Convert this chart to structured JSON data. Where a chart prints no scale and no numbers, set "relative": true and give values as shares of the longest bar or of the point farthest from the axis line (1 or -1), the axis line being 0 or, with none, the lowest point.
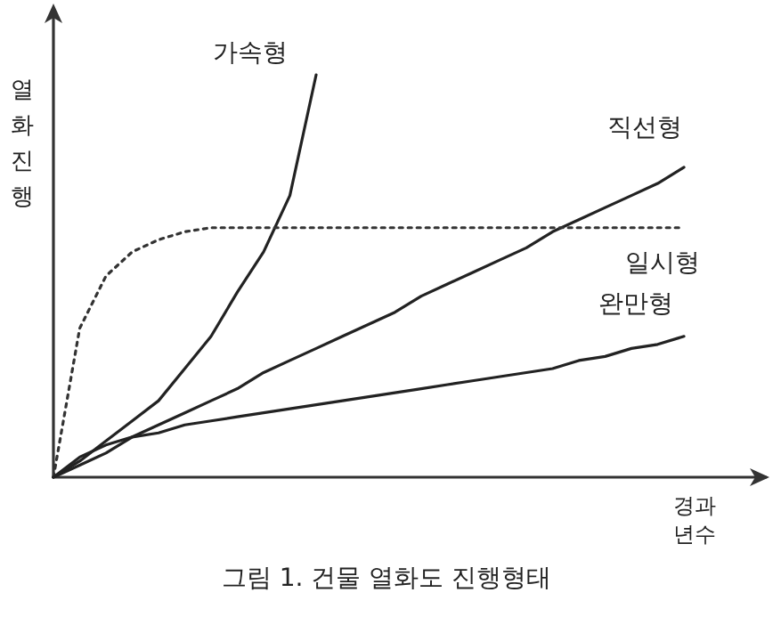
{
  "chart_data": {
    "type": "line",
    "relative": true,
    "ylabel": "열화진행",
    "xlabel": "경과 년수",
    "annotations": [
      "그림 1. 건물 열화도 진행형태"
    ],
    "categories": [
      null,
      null,
      null,
      null,
      null,
      null,
      null,
      null,
      null,
      null,
      null,
      null,
      null,
      null,
      null,
      null,
      null,
      null,
      null,
      null,
      null,
      null,
      null,
      null,
      null
    ],
    "series": [
      {
        "name": "가속형",
        "color": "#222222",
        "line_style": "solid",
        "values": [
          0,
          0.04,
          0.09,
          0.14,
          0.19,
          0.27,
          0.35,
          0.46,
          0.56,
          0.7,
          1,
          null,
          null,
          null,
          null,
          null,
          null,
          null,
          null,
          null,
          null,
          null,
          null,
          null,
          null
        ]
      },
      {
        "name": "직선형",
        "color": "#222222",
        "line_style": "solid",
        "values": [
          0,
          0.03,
          0.06,
          0.1,
          0.13,
          0.16,
          0.19,
          0.22,
          0.26,
          0.29,
          0.32,
          0.35,
          0.38,
          0.41,
          0.45,
          0.48,
          0.51,
          0.54,
          0.57,
          0.61,
          0.64,
          0.67,
          0.7,
          0.73,
          0.77
        ]
      },
      {
        "name": "일시형",
        "color": "#333333",
        "line_style": "dotted",
        "values": [
          0,
          0.37,
          0.5,
          0.56,
          0.59,
          0.61,
          0.62,
          0.62,
          0.62,
          0.62,
          0.62,
          0.62,
          0.62,
          0.62,
          0.62,
          0.62,
          0.62,
          0.62,
          0.62,
          0.62,
          0.62,
          0.62,
          0.62,
          0.62,
          0.62
        ]
      },
      {
        "name": "완만형",
        "color": "#222222",
        "line_style": "solid",
        "values": [
          0,
          0.05,
          0.08,
          0.1,
          0.11,
          0.13,
          0.14,
          0.15,
          0.16,
          0.17,
          0.18,
          0.19,
          0.2,
          0.21,
          0.22,
          0.23,
          0.24,
          0.25,
          0.26,
          0.27,
          0.29,
          0.3,
          0.32,
          0.33,
          0.35
        ]
      }
    ],
    "marker": "none",
    "grid": false,
    "legend": false
  }
}
